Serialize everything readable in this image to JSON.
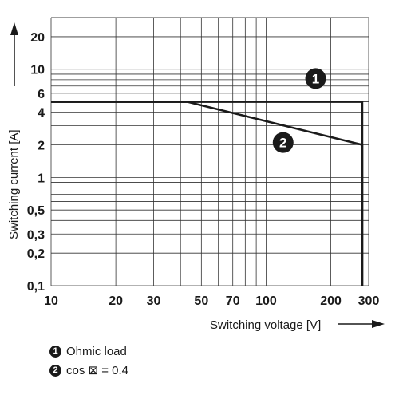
{
  "chart_data": {
    "type": "line",
    "xlabel": "Switching voltage [V]",
    "ylabel": "Switching current [A]",
    "x_scale": "log",
    "y_scale": "log",
    "xlim": [
      10,
      300
    ],
    "ylim": [
      0.1,
      30
    ],
    "x_ticks": [
      10,
      20,
      30,
      50,
      70,
      100,
      200,
      300
    ],
    "x_tick_labels": [
      "10",
      "20",
      "30",
      "50",
      "70",
      "100",
      "200",
      "300"
    ],
    "y_ticks": [
      0.1,
      0.2,
      0.3,
      0.5,
      1,
      2,
      4,
      6,
      10,
      20
    ],
    "y_tick_labels": [
      "0,1",
      "0,2",
      "0,3",
      "0,5",
      "1",
      "2",
      "4",
      "6",
      "10",
      "20"
    ],
    "grid": true,
    "series": [
      {
        "name": "Ohmic load",
        "badge": "1",
        "x": [
          10,
          40,
          280,
          280
        ],
        "y": [
          5,
          5,
          5,
          0.1
        ]
      },
      {
        "name": "cos ⊠ = 0.4",
        "badge": "2",
        "x": [
          10,
          43,
          280,
          280
        ],
        "y": [
          5,
          5,
          2,
          0.1
        ]
      }
    ],
    "line_color": "#1a1a1a"
  },
  "legend": [
    {
      "badge": "1",
      "label": "Ohmic load"
    },
    {
      "badge": "2",
      "label": "cos ⊠ = 0.4"
    }
  ]
}
